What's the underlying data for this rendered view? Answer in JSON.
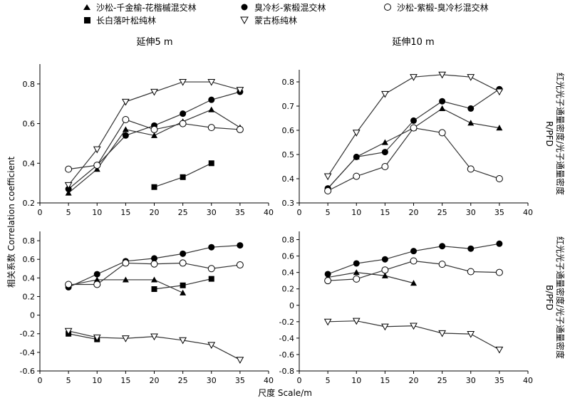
{
  "legend": [
    {
      "marker": "triangle",
      "label": "沙松-千金榆-花楷槭混交林"
    },
    {
      "marker": "filled-circle",
      "label": "臭冷杉-紫椴混交林"
    },
    {
      "marker": "open-circle",
      "label": "沙松-紫椴-臭冷杉混交林"
    },
    {
      "marker": "square",
      "label": "长白落叶松纯林"
    },
    {
      "marker": "inverted-triangle",
      "label": "蒙古栎纯林"
    }
  ],
  "labels": {
    "left_title": "延伸5 m",
    "right_title": "延伸10 m",
    "y_axis_title": "相关系数 Correlation coefficient",
    "x_axis_title": "尺度 Scale/m",
    "right_label_top": "红光光子通量密度/光子通量密度",
    "right_label_top_abbr": "R/PFD",
    "right_label_bottom": "红光光子通量密度/光子通量密度",
    "right_label_bottom_abbr": "B/PFD"
  },
  "colors": {
    "line": "#333333",
    "marker": "#000000",
    "open_fill": "#ffffff"
  },
  "chart_data": [
    {
      "type": "line",
      "panel": "top-left",
      "title": "延伸5 m",
      "xlim": [
        0,
        40
      ],
      "ylim": [
        0.2,
        0.9
      ],
      "xticks": [
        0,
        5,
        10,
        15,
        20,
        25,
        30,
        35,
        40
      ],
      "yticks": [
        0.2,
        0.4,
        0.6,
        0.8
      ],
      "grid": false,
      "series": [
        {
          "name": "沙松-千金榆-花楷槭混交林",
          "marker": "triangle",
          "x": [
            5,
            10,
            15,
            20,
            25,
            30,
            35
          ],
          "y": [
            0.25,
            0.37,
            0.57,
            0.54,
            0.61,
            0.67,
            0.58
          ]
        },
        {
          "name": "臭冷杉-紫椴混交林",
          "marker": "filled-circle",
          "x": [
            5,
            10,
            15,
            20,
            25,
            30,
            35
          ],
          "y": [
            0.27,
            0.39,
            0.54,
            0.59,
            0.65,
            0.72,
            0.76
          ]
        },
        {
          "name": "沙松-紫椴-臭冷杉混交林",
          "marker": "open-circle",
          "x": [
            5,
            10,
            15,
            20,
            25,
            30,
            35
          ],
          "y": [
            0.37,
            0.39,
            0.62,
            0.57,
            0.6,
            0.58,
            0.57
          ]
        },
        {
          "name": "长白落叶松纯林",
          "marker": "square",
          "x": [
            20,
            25,
            30
          ],
          "y": [
            0.28,
            0.33,
            0.4
          ]
        },
        {
          "name": "蒙古栎纯林",
          "marker": "inverted-triangle",
          "x": [
            5,
            10,
            15,
            20,
            25,
            30,
            35
          ],
          "y": [
            0.29,
            0.47,
            0.71,
            0.76,
            0.81,
            0.81,
            0.77
          ]
        }
      ]
    },
    {
      "type": "line",
      "panel": "top-right",
      "title": "延伸10 m",
      "xlim": [
        0,
        40
      ],
      "ylim": [
        0.3,
        0.85
      ],
      "xticks": [
        0,
        5,
        10,
        15,
        20,
        25,
        30,
        35,
        40
      ],
      "yticks": [
        0.3,
        0.4,
        0.5,
        0.6,
        0.7,
        0.8
      ],
      "grid": false,
      "series": [
        {
          "name": "沙松-千金榆-花楷槭混交林",
          "marker": "triangle",
          "x": [
            5,
            10,
            15,
            20,
            25,
            30,
            35
          ],
          "y": [
            0.36,
            0.49,
            0.55,
            0.61,
            0.69,
            0.63,
            0.61
          ]
        },
        {
          "name": "臭冷杉-紫椴混交林",
          "marker": "filled-circle",
          "x": [
            5,
            10,
            15,
            20,
            25,
            30,
            35
          ],
          "y": [
            0.36,
            0.49,
            0.51,
            0.64,
            0.72,
            0.69,
            0.77
          ]
        },
        {
          "name": "沙松-紫椴-臭冷杉混交林",
          "marker": "open-circle",
          "x": [
            5,
            10,
            15,
            20,
            25,
            30,
            35
          ],
          "y": [
            0.35,
            0.41,
            0.45,
            0.61,
            0.59,
            0.44,
            0.4
          ]
        },
        {
          "name": "蒙古栎纯林",
          "marker": "inverted-triangle",
          "x": [
            5,
            10,
            15,
            20,
            25,
            30,
            35
          ],
          "y": [
            0.41,
            0.59,
            0.75,
            0.82,
            0.83,
            0.82,
            0.76
          ]
        }
      ]
    },
    {
      "type": "line",
      "panel": "bottom-left",
      "xlim": [
        0,
        40
      ],
      "ylim": [
        -0.6,
        0.9
      ],
      "xticks": [
        0,
        5,
        10,
        15,
        20,
        25,
        30,
        35,
        40
      ],
      "yticks": [
        -0.6,
        -0.4,
        -0.2,
        0,
        0.2,
        0.4,
        0.6,
        0.8
      ],
      "grid": false,
      "series": [
        {
          "name": "沙松-千金榆-花楷槭混交林",
          "marker": "triangle",
          "x": [
            5,
            10,
            15,
            20,
            25
          ],
          "y": [
            0.32,
            0.38,
            0.38,
            0.38,
            0.24
          ]
        },
        {
          "name": "臭冷杉-紫椴混交林",
          "marker": "filled-circle",
          "x": [
            5,
            10,
            15,
            20,
            25,
            30,
            35
          ],
          "y": [
            0.3,
            0.44,
            0.58,
            0.61,
            0.66,
            0.73,
            0.75
          ]
        },
        {
          "name": "沙松-紫椴-臭冷杉混交林",
          "marker": "open-circle",
          "x": [
            5,
            10,
            15,
            20,
            25,
            30,
            35
          ],
          "y": [
            0.33,
            0.33,
            0.56,
            0.55,
            0.56,
            0.5,
            0.54
          ]
        },
        {
          "name": "长白落叶松纯林",
          "marker": "square",
          "x": [
            20,
            25,
            30
          ],
          "y": [
            0.28,
            0.32,
            0.39
          ]
        },
        {
          "name": "长白落叶松纯林",
          "marker": "square",
          "x": [
            5,
            10
          ],
          "y": [
            -0.2,
            -0.26
          ]
        },
        {
          "name": "蒙古栎纯林",
          "marker": "inverted-triangle",
          "x": [
            5,
            10,
            15,
            20,
            25,
            30,
            35
          ],
          "y": [
            -0.17,
            -0.24,
            -0.25,
            -0.23,
            -0.27,
            -0.32,
            -0.48
          ]
        }
      ]
    },
    {
      "type": "line",
      "panel": "bottom-right",
      "xlim": [
        0,
        40
      ],
      "ylim": [
        -0.8,
        0.9
      ],
      "xticks": [
        0,
        5,
        10,
        15,
        20,
        25,
        30,
        35,
        40
      ],
      "yticks": [
        -0.8,
        -0.6,
        -0.4,
        -0.2,
        0,
        0.2,
        0.4,
        0.6,
        0.8
      ],
      "grid": false,
      "series": [
        {
          "name": "沙松-千金榆-花楷槭混交林",
          "marker": "triangle",
          "x": [
            5,
            10,
            15,
            20
          ],
          "y": [
            0.34,
            0.4,
            0.36,
            0.27
          ]
        },
        {
          "name": "臭冷杉-紫椴混交林",
          "marker": "filled-circle",
          "x": [
            5,
            10,
            15,
            20,
            25,
            30,
            35
          ],
          "y": [
            0.38,
            0.51,
            0.56,
            0.66,
            0.72,
            0.69,
            0.75
          ]
        },
        {
          "name": "沙松-紫椴-臭冷杉混交林",
          "marker": "open-circle",
          "x": [
            5,
            10,
            15,
            20,
            25,
            30,
            35
          ],
          "y": [
            0.3,
            0.32,
            0.43,
            0.54,
            0.5,
            0.41,
            0.4
          ]
        },
        {
          "name": "蒙古栎纯林",
          "marker": "inverted-triangle",
          "x": [
            5,
            10,
            15,
            20,
            25,
            30,
            35
          ],
          "y": [
            -0.2,
            -0.19,
            -0.26,
            -0.25,
            -0.34,
            -0.35,
            -0.54
          ]
        }
      ]
    }
  ]
}
